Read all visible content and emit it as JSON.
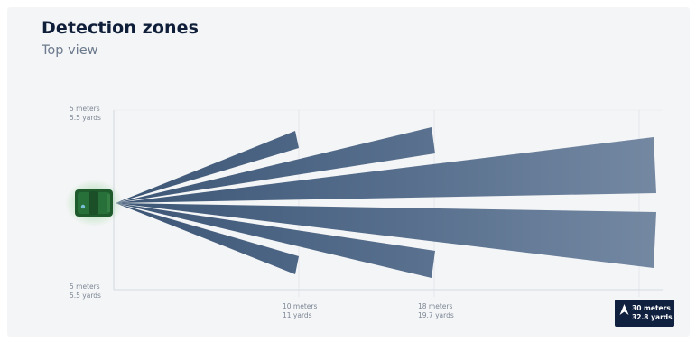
{
  "header": {
    "title": "Detection zones",
    "subtitle": "Top view"
  },
  "axis": {
    "top_left": {
      "meters": "5 meters",
      "yards": "5.5 yards"
    },
    "bottom_left": {
      "meters": "5 meters",
      "yards": "5.5 yards"
    },
    "ticks": [
      {
        "meters": "10 meters",
        "yards": "11 yards"
      },
      {
        "meters": "18 meters",
        "yards": "19.7 yards"
      },
      {
        "meters": "30 meters",
        "yards": "32.8 yards"
      }
    ]
  },
  "colors": {
    "beam": "#4f6683",
    "device": "#1e5a2c",
    "glow": "#2a9a3a",
    "badge": "#10213f",
    "axis": "#c9d1da"
  },
  "icons": {
    "badge": "chevron-up-arrow-icon",
    "device": "radar-sensor-icon"
  }
}
